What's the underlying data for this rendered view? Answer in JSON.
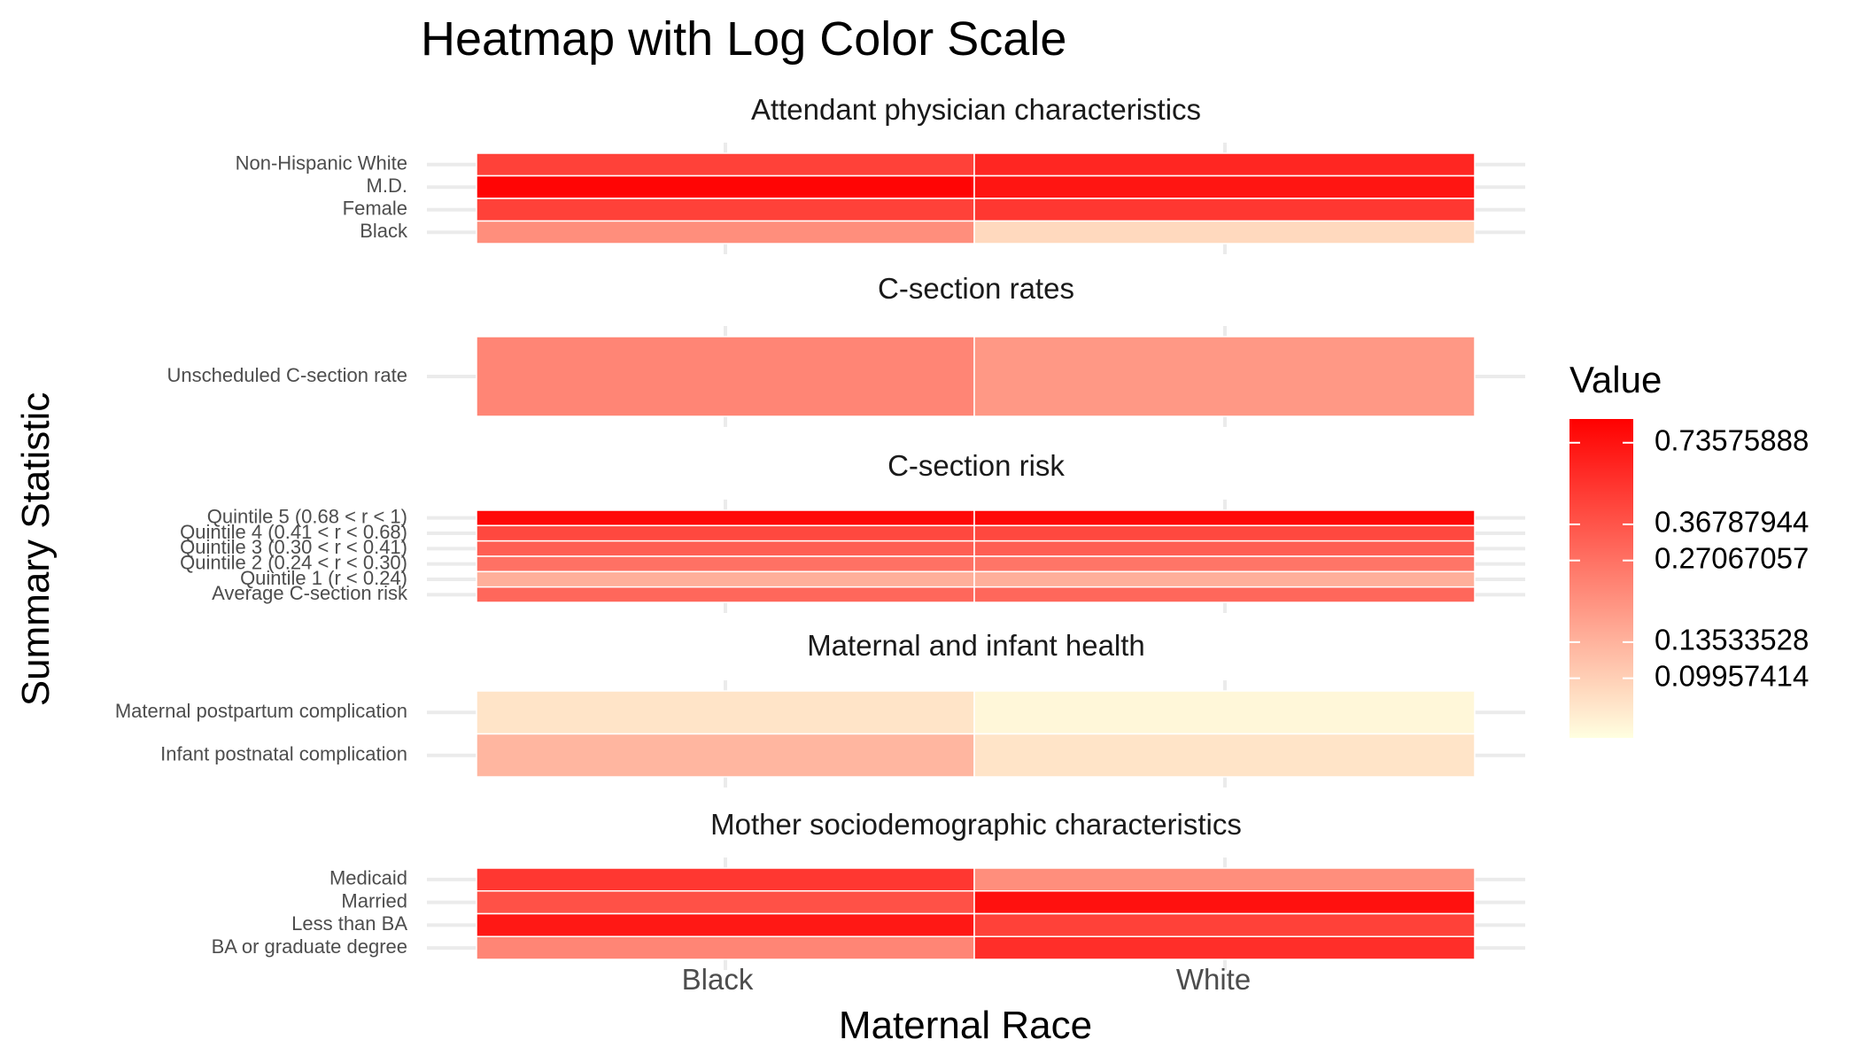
{
  "chart_data": {
    "type": "heatmap",
    "title": "Heatmap with Log Color Scale",
    "xlabel": "Maternal Race",
    "ylabel": "Summary Statistic",
    "categories": [
      "Black",
      "White"
    ],
    "color_scale": {
      "type": "log",
      "low_color": "#ffffe0",
      "high_color": "#ff0000",
      "domain": [
        0.06,
        0.9
      ],
      "legend_title": "Value",
      "legend_ticks": [
        {
          "value": 0.73575888,
          "label": "0.73575888"
        },
        {
          "value": 0.36787944,
          "label": "0.36787944"
        },
        {
          "value": 0.27067057,
          "label": "0.27067057"
        },
        {
          "value": 0.13533528,
          "label": "0.13533528"
        },
        {
          "value": 0.09957414,
          "label": "0.09957414"
        }
      ]
    },
    "facets": [
      {
        "title": "Attendant physician characteristics",
        "rows": [
          {
            "label": "Non-Hispanic White",
            "values": [
              0.45,
              0.6
            ]
          },
          {
            "label": "M.D.",
            "values": [
              0.85,
              0.72
            ]
          },
          {
            "label": "Female",
            "values": [
              0.45,
              0.5
            ]
          },
          {
            "label": "Black",
            "values": [
              0.2,
              0.09
            ]
          }
        ]
      },
      {
        "title": "C-section rates",
        "rows": [
          {
            "label": "Unscheduled C-section rate",
            "values": [
              0.22,
              0.18
            ]
          }
        ]
      },
      {
        "title": "C-section risk",
        "rows": [
          {
            "label": "Quintile 5 (0.68 < r < 1)",
            "values": [
              0.82,
              0.82
            ]
          },
          {
            "label": "Quintile 4 (0.41 < r < 0.68)",
            "values": [
              0.42,
              0.42
            ]
          },
          {
            "label": "Quintile 3 (0.30 < r < 0.41)",
            "values": [
              0.33,
              0.33
            ]
          },
          {
            "label": "Quintile 2 (0.24 < r < 0.30)",
            "values": [
              0.27,
              0.26
            ]
          },
          {
            "label": "Quintile 1 (r < 0.24)",
            "values": [
              0.14,
              0.14
            ]
          },
          {
            "label": "Average C-section risk",
            "values": [
              0.3,
              0.3
            ]
          }
        ]
      },
      {
        "title": "Maternal and infant health",
        "rows": [
          {
            "label": "Maternal postpartum complication",
            "values": [
              0.08,
              0.065
            ]
          },
          {
            "label": "Infant postnatal complication",
            "values": [
              0.13,
              0.08
            ]
          }
        ]
      },
      {
        "title": "Mother sociodemographic characteristics",
        "rows": [
          {
            "label": "Medicaid",
            "values": [
              0.5,
              0.2
            ]
          },
          {
            "label": "Married",
            "values": [
              0.38,
              0.75
            ]
          },
          {
            "label": "Less than BA",
            "values": [
              0.7,
              0.45
            ]
          },
          {
            "label": "BA or graduate degree",
            "values": [
              0.22,
              0.55
            ]
          }
        ]
      }
    ]
  }
}
